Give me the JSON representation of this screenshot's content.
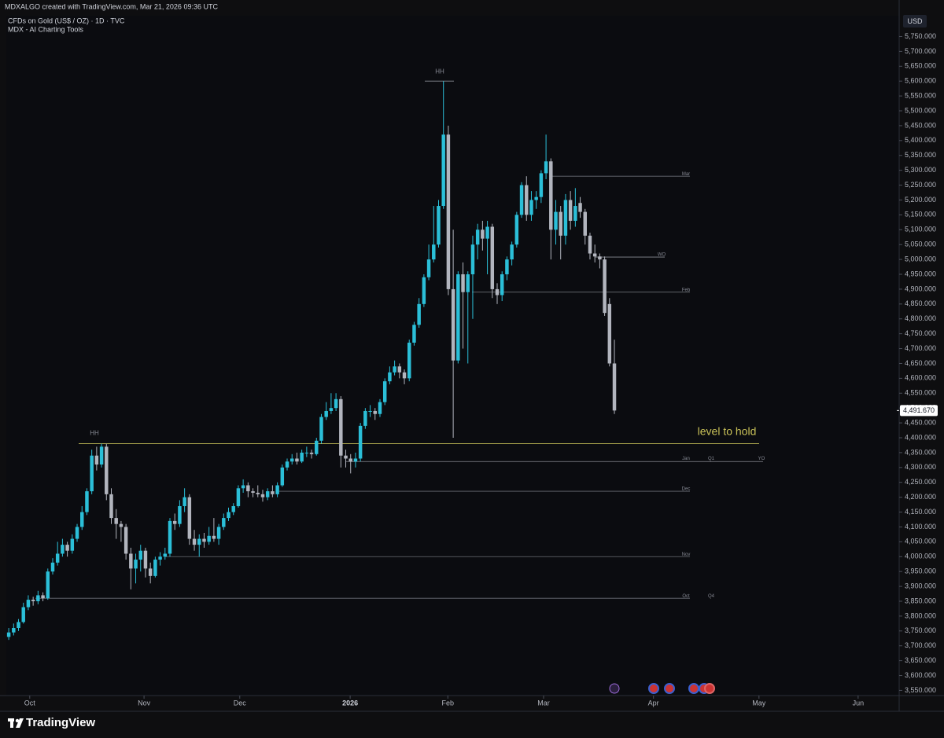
{
  "header": {
    "credit": "MDXALGO created with TradingView.com, Mar 21, 2026 09:36 UTC",
    "symbol": "CFDs on Gold (US$ / OZ) · 1D · TVC",
    "indicator": "MDX - AI Charting Tools"
  },
  "chart_data": {
    "type": "candlestick",
    "up_color": "#2bbfd8",
    "down_color": "#b2b5be",
    "currency": "USD",
    "ohlc": [
      [
        3730,
        3760,
        3720,
        3745
      ],
      [
        3745,
        3775,
        3735,
        3760
      ],
      [
        3760,
        3790,
        3750,
        3780
      ],
      [
        3780,
        3845,
        3775,
        3830
      ],
      [
        3830,
        3870,
        3820,
        3855
      ],
      [
        3855,
        3865,
        3835,
        3850
      ],
      [
        3850,
        3885,
        3840,
        3870
      ],
      [
        3870,
        3880,
        3850,
        3860
      ],
      [
        3860,
        3960,
        3855,
        3950
      ],
      [
        3950,
        3995,
        3940,
        3980
      ],
      [
        3980,
        4050,
        3970,
        4010
      ],
      [
        4010,
        4060,
        4000,
        4040
      ],
      [
        4040,
        4050,
        4000,
        4020
      ],
      [
        4020,
        4075,
        4010,
        4060
      ],
      [
        4060,
        4110,
        4050,
        4100
      ],
      [
        4100,
        4170,
        4090,
        4150
      ],
      [
        4150,
        4230,
        4140,
        4220
      ],
      [
        4220,
        4360,
        4210,
        4340
      ],
      [
        4340,
        4370,
        4290,
        4310
      ],
      [
        4310,
        4380,
        4300,
        4370
      ],
      [
        4370,
        4380,
        4190,
        4210
      ],
      [
        4210,
        4230,
        4110,
        4130
      ],
      [
        4130,
        4160,
        4060,
        4110
      ],
      [
        4110,
        4120,
        4050,
        4100
      ],
      [
        4100,
        4110,
        3990,
        4010
      ],
      [
        4010,
        4030,
        3890,
        3960
      ],
      [
        3960,
        4010,
        3910,
        3990
      ],
      [
        3990,
        4040,
        3950,
        4020
      ],
      [
        4020,
        4030,
        3930,
        3960
      ],
      [
        3960,
        3980,
        3910,
        3935
      ],
      [
        3935,
        4000,
        3930,
        3990
      ],
      [
        3990,
        4015,
        3970,
        4000
      ],
      [
        4000,
        4030,
        3990,
        4010
      ],
      [
        4010,
        4130,
        4000,
        4120
      ],
      [
        4120,
        4145,
        4090,
        4110
      ],
      [
        4110,
        4190,
        4100,
        4170
      ],
      [
        4170,
        4230,
        4150,
        4200
      ],
      [
        4200,
        4210,
        4040,
        4060
      ],
      [
        4060,
        4090,
        4020,
        4040
      ],
      [
        4040,
        4075,
        4000,
        4060
      ],
      [
        4060,
        4080,
        4030,
        4050
      ],
      [
        4050,
        4100,
        4040,
        4070
      ],
      [
        4070,
        4130,
        4050,
        4060
      ],
      [
        4060,
        4110,
        4040,
        4100
      ],
      [
        4100,
        4145,
        4090,
        4130
      ],
      [
        4130,
        4165,
        4120,
        4150
      ],
      [
        4150,
        4180,
        4140,
        4170
      ],
      [
        4170,
        4240,
        4165,
        4230
      ],
      [
        4230,
        4260,
        4215,
        4240
      ],
      [
        4240,
        4250,
        4200,
        4220
      ],
      [
        4220,
        4230,
        4200,
        4215
      ],
      [
        4215,
        4240,
        4200,
        4210
      ],
      [
        4210,
        4225,
        4185,
        4200
      ],
      [
        4200,
        4230,
        4190,
        4220
      ],
      [
        4220,
        4240,
        4200,
        4210
      ],
      [
        4210,
        4250,
        4200,
        4240
      ],
      [
        4240,
        4310,
        4235,
        4300
      ],
      [
        4300,
        4330,
        4290,
        4320
      ],
      [
        4320,
        4345,
        4310,
        4330
      ],
      [
        4330,
        4350,
        4310,
        4320
      ],
      [
        4320,
        4360,
        4315,
        4350
      ],
      [
        4350,
        4370,
        4335,
        4350
      ],
      [
        4350,
        4360,
        4330,
        4345
      ],
      [
        4345,
        4400,
        4340,
        4390
      ],
      [
        4390,
        4480,
        4380,
        4470
      ],
      [
        4470,
        4520,
        4460,
        4490
      ],
      [
        4490,
        4550,
        4480,
        4500
      ],
      [
        4500,
        4550,
        4490,
        4530
      ],
      [
        4530,
        4540,
        4300,
        4340
      ],
      [
        4340,
        4360,
        4300,
        4330
      ],
      [
        4330,
        4345,
        4280,
        4320
      ],
      [
        4320,
        4350,
        4300,
        4330
      ],
      [
        4330,
        4450,
        4320,
        4440
      ],
      [
        4440,
        4500,
        4430,
        4490
      ],
      [
        4490,
        4510,
        4470,
        4490
      ],
      [
        4490,
        4500,
        4460,
        4480
      ],
      [
        4480,
        4530,
        4470,
        4520
      ],
      [
        4520,
        4600,
        4510,
        4590
      ],
      [
        4590,
        4640,
        4580,
        4620
      ],
      [
        4620,
        4660,
        4610,
        4640
      ],
      [
        4640,
        4650,
        4600,
        4620
      ],
      [
        4620,
        4630,
        4580,
        4600
      ],
      [
        4600,
        4730,
        4590,
        4720
      ],
      [
        4720,
        4790,
        4710,
        4780
      ],
      [
        4780,
        4870,
        4770,
        4850
      ],
      [
        4850,
        4950,
        4840,
        4940
      ],
      [
        4940,
        5050,
        4930,
        5000
      ],
      [
        5000,
        5180,
        4990,
        5050
      ],
      [
        5050,
        5200,
        5040,
        5180
      ],
      [
        5180,
        5600,
        5170,
        5420
      ],
      [
        5420,
        5450,
        4880,
        4900
      ],
      [
        4900,
        5100,
        4400,
        4660
      ],
      [
        4660,
        4960,
        4650,
        4950
      ],
      [
        4950,
        4990,
        4700,
        4890
      ],
      [
        4890,
        4960,
        4650,
        4950
      ],
      [
        4950,
        5080,
        4800,
        5050
      ],
      [
        5050,
        5120,
        5000,
        5100
      ],
      [
        5100,
        5130,
        5030,
        5070
      ],
      [
        5070,
        5130,
        4950,
        5110
      ],
      [
        5110,
        5120,
        4870,
        4900
      ],
      [
        4900,
        4920,
        4850,
        4880
      ],
      [
        4880,
        4960,
        4860,
        4950
      ],
      [
        4950,
        5010,
        4930,
        5000
      ],
      [
        5000,
        5060,
        4980,
        5050
      ],
      [
        5050,
        5160,
        5040,
        5150
      ],
      [
        5150,
        5260,
        5140,
        5250
      ],
      [
        5250,
        5280,
        5130,
        5150
      ],
      [
        5150,
        5230,
        5130,
        5200
      ],
      [
        5200,
        5230,
        5170,
        5210
      ],
      [
        5210,
        5300,
        5190,
        5290
      ],
      [
        5290,
        5420,
        5270,
        5330
      ],
      [
        5330,
        5340,
        5000,
        5100
      ],
      [
        5100,
        5200,
        5050,
        5160
      ],
      [
        5160,
        5180,
        5000,
        5080
      ],
      [
        5080,
        5220,
        5050,
        5200
      ],
      [
        5200,
        5230,
        5100,
        5130
      ],
      [
        5130,
        5240,
        5110,
        5180
      ],
      [
        5190,
        5210,
        5140,
        5160
      ],
      [
        5160,
        5170,
        5050,
        5080
      ],
      [
        5080,
        5090,
        5000,
        5020
      ],
      [
        5020,
        5050,
        4990,
        5010
      ],
      [
        5010,
        5020,
        4970,
        5000
      ],
      [
        5000,
        5010,
        4810,
        4820
      ],
      [
        4850,
        4870,
        4640,
        4650
      ],
      [
        4650,
        4730,
        4480,
        4491.67
      ]
    ],
    "ylim": [
      3530,
      5820
    ],
    "yticks": [
      {
        "value": 3550,
        "label": "3,550.000"
      },
      {
        "value": 3600,
        "label": "3,600.000"
      },
      {
        "value": 3650,
        "label": "3,650.000"
      },
      {
        "value": 3700,
        "label": "3,700.000"
      },
      {
        "value": 3750,
        "label": "3,750.000"
      },
      {
        "value": 3800,
        "label": "3,800.000"
      },
      {
        "value": 3850,
        "label": "3,850.000"
      },
      {
        "value": 3900,
        "label": "3,900.000"
      },
      {
        "value": 3950,
        "label": "3,950.000"
      },
      {
        "value": 4000,
        "label": "4,000.000"
      },
      {
        "value": 4050,
        "label": "4,050.000"
      },
      {
        "value": 4100,
        "label": "4,100.000"
      },
      {
        "value": 4150,
        "label": "4,150.000"
      },
      {
        "value": 4200,
        "label": "4,200.000"
      },
      {
        "value": 4250,
        "label": "4,250.000"
      },
      {
        "value": 4300,
        "label": "4,300.000"
      },
      {
        "value": 4350,
        "label": "4,350.000"
      },
      {
        "value": 4400,
        "label": "4,400.000"
      },
      {
        "value": 4450,
        "label": "4,450.000"
      },
      {
        "value": 4500,
        "label": "4,500.000"
      },
      {
        "value": 4550,
        "label": "4,550.000"
      },
      {
        "value": 4600,
        "label": "4,600.000"
      },
      {
        "value": 4650,
        "label": "4,650.000"
      },
      {
        "value": 4700,
        "label": "4,700.000"
      },
      {
        "value": 4750,
        "label": "4,750.000"
      },
      {
        "value": 4800,
        "label": "4,800.000"
      },
      {
        "value": 4850,
        "label": "4,850.000"
      },
      {
        "value": 4900,
        "label": "4,900.000"
      },
      {
        "value": 4950,
        "label": "4,950.000"
      },
      {
        "value": 5000,
        "label": "5,000.000"
      },
      {
        "value": 5050,
        "label": "5,050.000"
      },
      {
        "value": 5100,
        "label": "5,100.000"
      },
      {
        "value": 5150,
        "label": "5,150.000"
      },
      {
        "value": 5200,
        "label": "5,200.000"
      },
      {
        "value": 5250,
        "label": "5,250.000"
      },
      {
        "value": 5300,
        "label": "5,300.000"
      },
      {
        "value": 5350,
        "label": "5,350.000"
      },
      {
        "value": 5400,
        "label": "5,400.000"
      },
      {
        "value": 5450,
        "label": "5,450.000"
      },
      {
        "value": 5500,
        "label": "5,500.000"
      },
      {
        "value": 5550,
        "label": "5,550.000"
      },
      {
        "value": 5600,
        "label": "5,600.000"
      },
      {
        "value": 5650,
        "label": "5,650.000"
      },
      {
        "value": 5700,
        "label": "5,700.000"
      },
      {
        "value": 5750,
        "label": "5,750.000"
      }
    ],
    "xlim": [
      -0.5,
      182.3
    ],
    "xticks": [
      {
        "value": 4.3,
        "label": "Oct"
      },
      {
        "value": 27.7,
        "label": "Nov"
      },
      {
        "value": 47.3,
        "label": "Dec"
      },
      {
        "value": 69.9,
        "label": "2026"
      },
      {
        "value": 89.9,
        "label": "Feb"
      },
      {
        "value": 109.5,
        "label": "Mar"
      },
      {
        "value": 132,
        "label": "Apr"
      },
      {
        "value": 153.6,
        "label": "May"
      },
      {
        "value": 173.9,
        "label": "Jun"
      }
    ],
    "last_price": {
      "value": 4491.67,
      "label": "4,491.670"
    },
    "levels": [
      {
        "value": 5600,
        "color": "#8a8d94",
        "labels": [
          "HH"
        ]
      },
      {
        "value": 5280,
        "color": "#6b6e76",
        "labels": [
          "Mar"
        ]
      },
      {
        "value": 5008,
        "color": "#8a8d94",
        "labels": [
          "WO"
        ]
      },
      {
        "value": 4890,
        "color": "#6b6e76",
        "labels": [
          "Feb"
        ]
      },
      {
        "value": 4380,
        "color": "#c9c158",
        "labels": [
          "HH",
          "level to hold"
        ]
      },
      {
        "value": 4320,
        "color": "#8a8d94",
        "labels": [
          "Jan",
          "Q1",
          "YO"
        ]
      },
      {
        "value": 4220,
        "color": "#6b6e76",
        "labels": [
          "Dec"
        ]
      },
      {
        "value": 4000,
        "color": "#6b6e76",
        "labels": [
          "Nov"
        ]
      },
      {
        "value": 3860,
        "color": "#6b6e76",
        "labels": [
          "Oct",
          "Q4"
        ]
      }
    ]
  },
  "footer": {
    "brand": "TradingView"
  }
}
